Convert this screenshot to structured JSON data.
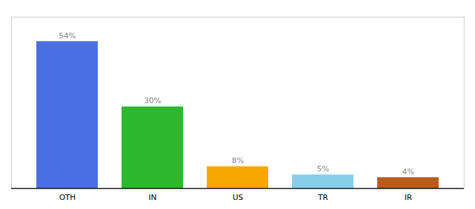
{
  "chart_data": {
    "type": "bar",
    "categories": [
      "OTH",
      "IN",
      "US",
      "TR",
      "IR"
    ],
    "values": [
      54,
      30,
      8,
      5,
      4
    ],
    "value_labels": [
      "54%",
      "30%",
      "8%",
      "5%",
      "4%"
    ],
    "colors": [
      "#4a6fe3",
      "#2db82d",
      "#f5a800",
      "#87ceeb",
      "#b85c1e"
    ],
    "ylim": [
      0,
      63
    ],
    "data_labels": true,
    "tick_labels": "x"
  }
}
